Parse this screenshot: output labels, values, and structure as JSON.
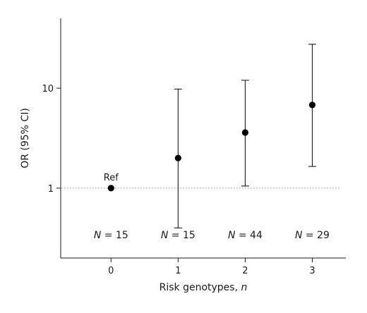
{
  "chart_data": {
    "type": "scatter",
    "title": "",
    "xlabel": "Risk genotypes, ",
    "xlabel_italic": "n",
    "ylabel": "OR (95% CI)",
    "y_scale": "log",
    "xlim": [
      -0.75,
      3.5
    ],
    "ylim": [
      0.2,
      50
    ],
    "x_ticks": [
      {
        "value": 0,
        "label": "0"
      },
      {
        "value": 1,
        "label": "1"
      },
      {
        "value": 2,
        "label": "2"
      },
      {
        "value": 3,
        "label": "3"
      }
    ],
    "y_ticks": [
      {
        "value": 1,
        "label": "1"
      },
      {
        "value": 10,
        "label": "10"
      }
    ],
    "reference_line": {
      "y": 1,
      "style": "dotted"
    },
    "points": [
      {
        "x": 0,
        "or": 1.0,
        "ci_low": null,
        "ci_high": null,
        "annotation": "Ref"
      },
      {
        "x": 1,
        "or": 2.0,
        "ci_low": 0.4,
        "ci_high": 9.8
      },
      {
        "x": 2,
        "or": 3.6,
        "ci_low": 1.05,
        "ci_high": 12.0
      },
      {
        "x": 3,
        "or": 6.8,
        "ci_low": 1.65,
        "ci_high": 27.5
      }
    ],
    "sample_sizes": [
      {
        "x": 0,
        "prefix": "N",
        "text": " = 15"
      },
      {
        "x": 1,
        "prefix": "N",
        "text": " = 15"
      },
      {
        "x": 2,
        "prefix": "N",
        "text": " = 44"
      },
      {
        "x": 3,
        "prefix": "N",
        "text": " = 29"
      }
    ],
    "grid": false,
    "legend": "none"
  }
}
